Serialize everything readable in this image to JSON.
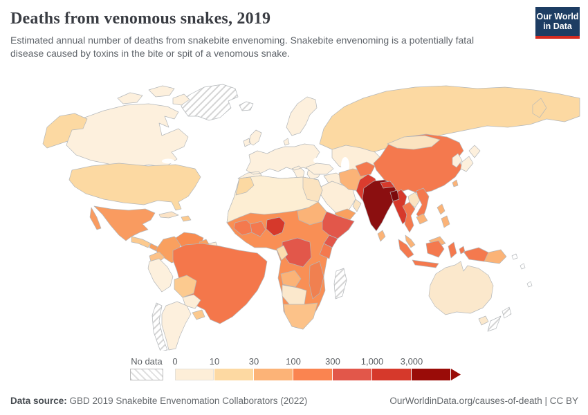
{
  "header": {
    "title": "Deaths from venomous snakes, 2019",
    "subtitle": "Estimated annual number of deaths from snakebite envenoming. Snakebite envenoming is a potentially fatal disease caused by toxins in the bite or spit of a venomous snake."
  },
  "logo": {
    "line1": "Our World",
    "line2": "in Data",
    "bg_color": "#1d3d63",
    "accent_color": "#d42b20"
  },
  "legend": {
    "no_data_label": "No data",
    "tick_labels": [
      "0",
      "10",
      "30",
      "100",
      "300",
      "1,000",
      "3,000"
    ],
    "bucket_colors": [
      "#fdeed8",
      "#fdd9a2",
      "#fcb377",
      "#fa8450",
      "#e2574a",
      "#d6392b",
      "#9a0c08"
    ]
  },
  "footer": {
    "source_label": "Data source:",
    "source_text": "GBD 2019 Snakebite Envenomation Collaborators (2022)",
    "link_text": "OurWorldinData.org/causes-of-death",
    "separator": " | ",
    "license_text": "CC BY"
  },
  "chart_data": {
    "type": "choropleth_map",
    "title": "Deaths from venomous snakes, 2019",
    "metric": "Estimated annual number of deaths from snakebite envenoming",
    "year": 2019,
    "scale_stops": [
      0,
      10,
      30,
      100,
      300,
      1000,
      3000
    ],
    "scale_type": "discrete buckets, arrow on final bucket",
    "no_data_style": "diagonal gray hatching",
    "regions": {
      "greenland": {
        "bucket": "no-data",
        "color": "no-data"
      },
      "iceland": {
        "bucket": "no-data",
        "color": "no-data"
      },
      "canadian-arctic": {
        "bucket": "0-10",
        "color": "#fdf0dd"
      },
      "canada": {
        "bucket": "0-10",
        "color": "#fdf0dd"
      },
      "alaska": {
        "bucket": "10-30",
        "color": "#fcd9a2"
      },
      "usa": {
        "bucket": "10-30",
        "color": "#fcd9a2"
      },
      "mexico": {
        "bucket": "100-300",
        "color": "#f99b60"
      },
      "central-america-north": {
        "bucket": "30-100",
        "color": "#fcca8f"
      },
      "central-america-south": {
        "bucket": "100-300",
        "color": "#f9a05f"
      },
      "cuba": {
        "bucket": "0-10",
        "color": "#fbe3c6"
      },
      "hispaniola": {
        "bucket": "30-100",
        "color": "#fcca8f"
      },
      "colombia": {
        "bucket": "100-300",
        "color": "#f9a05f"
      },
      "venezuela": {
        "bucket": "100-300",
        "color": "#f88b4f"
      },
      "guyana": {
        "bucket": "100-300",
        "color": "#f9a05f"
      },
      "suriname": {
        "bucket": "0-10",
        "color": "#fdeed8"
      },
      "ecuador": {
        "bucket": "30-100",
        "color": "#fcc289"
      },
      "peru": {
        "bucket": "0-10",
        "color": "#fdf0dd"
      },
      "brazil": {
        "bucket": "100-300",
        "color": "#f4774b"
      },
      "bolivia": {
        "bucket": "30-100",
        "color": "#fcca8f"
      },
      "paraguay": {
        "bucket": "0-10",
        "color": "#fdeed8"
      },
      "uruguay": {
        "bucket": "30-100",
        "color": "#fbc98e"
      },
      "argentina": {
        "bucket": "0-10",
        "color": "#fdf0dd"
      },
      "chile": {
        "bucket": "no-data",
        "color": "no-data"
      },
      "europe": {
        "bucket": "0-10",
        "color": "#fdf0dd"
      },
      "russia": {
        "bucket": "10-30",
        "color": "#fcd9a2"
      },
      "kazakhstan-central-asia": {
        "bucket": "0-10",
        "color": "#fdeed8"
      },
      "turkey": {
        "bucket": "0-10",
        "color": "#fdf0dd"
      },
      "syria-iraq": {
        "bucket": "0-10",
        "color": "#fdeed8"
      },
      "saudi-arabia": {
        "bucket": "0-10",
        "color": "#fdeed8"
      },
      "yemen": {
        "bucket": "100-300",
        "color": "#f9a05f"
      },
      "oman": {
        "bucket": "10-30",
        "color": "#fbe3c0"
      },
      "iran": {
        "bucket": "30-100",
        "color": "#fbb377"
      },
      "afghanistan": {
        "bucket": "100-300",
        "color": "#f4794e"
      },
      "pakistan": {
        "bucket": "1,000-3,000",
        "color": "#da3c2e"
      },
      "india": {
        "bucket": "3,000+",
        "color": "#8b0f10"
      },
      "nepal": {
        "bucket": "1,000-3,000",
        "color": "#d6392b"
      },
      "bangladesh": {
        "bucket": "3,000+",
        "color": "#7c0a0c"
      },
      "sri-lanka": {
        "bucket": "30-100",
        "color": "#fbb377"
      },
      "china": {
        "bucket": "100-300",
        "color": "#f4794e"
      },
      "mongolia": {
        "bucket": "10-30",
        "color": "#fbe3c0"
      },
      "korea": {
        "bucket": "0-10",
        "color": "#fdf0dd"
      },
      "japan": {
        "bucket": "0-10",
        "color": "#fdf0dd"
      },
      "taiwan": {
        "bucket": "30-100",
        "color": "#fbb377"
      },
      "myanmar": {
        "bucket": "1,000-3,000",
        "color": "#d6392b"
      },
      "laos": {
        "bucket": "10-30",
        "color": "#fbe3c0"
      },
      "thailand": {
        "bucket": "100-300",
        "color": "#f4794e"
      },
      "vietnam": {
        "bucket": "100-300",
        "color": "#f4794e"
      },
      "cambodia": {
        "bucket": "30-100",
        "color": "#fbb377"
      },
      "malaysia": {
        "bucket": "30-100",
        "color": "#fbb377"
      },
      "indonesia": {
        "bucket": "100-300",
        "color": "#f4794e"
      },
      "philippines": {
        "bucket": "30-100",
        "color": "#fbb377"
      },
      "papua-new-guinea": {
        "bucket": "30-100",
        "color": "#fbb377"
      },
      "pacific-islands": {
        "bucket": "no-data",
        "color": "#ffffff"
      },
      "australia": {
        "bucket": "10-30",
        "color": "#fbe8cc"
      },
      "new-zealand": {
        "bucket": "no-data",
        "color": "no-data"
      },
      "north-africa": {
        "bucket": "0-10",
        "color": "#fdeed3"
      },
      "morocco": {
        "bucket": "10-30",
        "color": "#fcd9a2"
      },
      "egypt": {
        "bucket": "10-30",
        "color": "#fbe3c0"
      },
      "sahel-west-africa": {
        "bucket": "100-300",
        "color": "#f98f55"
      },
      "west-africa-coast": {
        "bucket": "100-300",
        "color": "#f4794e"
      },
      "ghana-ivory-coast": {
        "bucket": "100-300",
        "color": "#f4794e"
      },
      "nigeria": {
        "bucket": "1,000-3,000",
        "color": "#d6392b"
      },
      "sudan": {
        "bucket": "30-100",
        "color": "#fbb377"
      },
      "ethiopia-somalia": {
        "bucket": "300-1,000",
        "color": "#e2574a"
      },
      "kenya": {
        "bucket": "300-1,000",
        "color": "#e2574a"
      },
      "tanzania": {
        "bucket": "100-300",
        "color": "#f4794e"
      },
      "drc": {
        "bucket": "300-1,000",
        "color": "#e2574a"
      },
      "gabon-congo": {
        "bucket": "10-30",
        "color": "#fbdcae"
      },
      "angola": {
        "bucket": "30-100",
        "color": "#fbb377"
      },
      "mozambique": {
        "bucket": "100-300",
        "color": "#f08050"
      },
      "namibia-botswana": {
        "bucket": "0-10",
        "color": "#fbe8cc"
      },
      "south-africa": {
        "bucket": "30-100",
        "color": "#fcc289"
      },
      "madagascar": {
        "bucket": "no-data",
        "color": "no-data"
      }
    }
  }
}
